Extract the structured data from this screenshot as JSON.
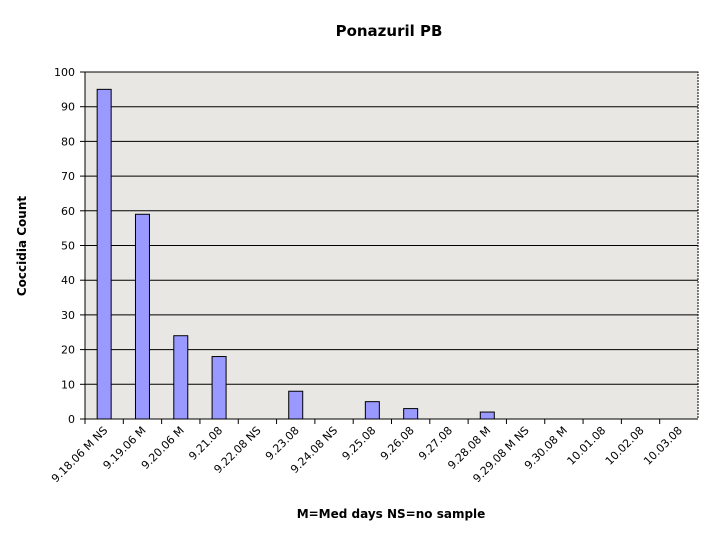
{
  "chart_data": {
    "type": "bar",
    "title": "Ponazuril PB",
    "x_label": "M=Med days NS=no sample",
    "y_label": "Coccidia Count",
    "categories": [
      "9.18.06 M NS",
      "9.19.06 M",
      "9.20.06 M",
      "9.21.08",
      "9.22.08 NS",
      "9.23.08",
      "9.24.08 NS",
      "9.25.08",
      "9.26.08",
      "9.27.08",
      "9.28.08 M",
      "9.29.08 M NS",
      "9.30.08 M",
      "10.01.08",
      "10.02.08",
      "10.03.08"
    ],
    "values": [
      95,
      59,
      24,
      18,
      0,
      8,
      0,
      5,
      3,
      0,
      2,
      0,
      0,
      0,
      0,
      0
    ],
    "color": "#9999ff",
    "ylim": [
      0,
      100
    ],
    "yticks": [
      0,
      10,
      20,
      30,
      40,
      50,
      60,
      70,
      80,
      90,
      100
    ],
    "grid": true
  }
}
